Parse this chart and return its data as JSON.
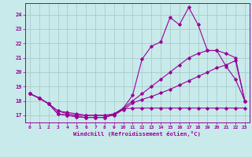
{
  "xlabel": "Windchill (Refroidissement éolien,°C)",
  "bg_color": "#c8eaea",
  "grid_color": "#aacccc",
  "line_color": "#990099",
  "x_ticks": [
    0,
    1,
    2,
    3,
    4,
    5,
    6,
    7,
    8,
    9,
    10,
    11,
    12,
    13,
    14,
    15,
    16,
    17,
    18,
    19,
    20,
    21,
    22,
    23
  ],
  "x_labels": [
    "0",
    "1",
    "2",
    "3",
    "4",
    "5",
    "6",
    "7",
    "8",
    "9",
    "10",
    "11",
    "12",
    "13",
    "14",
    "15",
    "16",
    "17",
    "18",
    "19",
    "20",
    "21",
    "22",
    "23"
  ],
  "y_ticks": [
    17,
    18,
    19,
    20,
    21,
    22,
    23,
    24
  ],
  "ylim": [
    16.5,
    24.8
  ],
  "xlim": [
    -0.5,
    23.5
  ],
  "line1_x": [
    0,
    1,
    2,
    3,
    4,
    5,
    6,
    7,
    8,
    9,
    10,
    11,
    12,
    13,
    14,
    15,
    16,
    17,
    18,
    19,
    20,
    21,
    22,
    23
  ],
  "line1_y": [
    18.5,
    18.2,
    17.8,
    17.1,
    17.0,
    16.9,
    16.85,
    16.85,
    16.85,
    17.05,
    17.45,
    17.5,
    17.5,
    17.5,
    17.5,
    17.5,
    17.5,
    17.5,
    17.5,
    17.5,
    17.5,
    17.5,
    17.5,
    17.5
  ],
  "line2_x": [
    0,
    1,
    2,
    3,
    4,
    5,
    6,
    7,
    8,
    9,
    10,
    11,
    12,
    13,
    14,
    15,
    16,
    17,
    18,
    19,
    20,
    21,
    22,
    23
  ],
  "line2_y": [
    18.5,
    18.2,
    17.8,
    17.1,
    17.0,
    16.9,
    16.85,
    16.85,
    16.85,
    17.05,
    17.5,
    18.4,
    20.9,
    21.8,
    22.1,
    23.8,
    23.3,
    24.5,
    23.3,
    21.5,
    21.5,
    20.4,
    19.5,
    18.0
  ],
  "line3_x": [
    0,
    1,
    2,
    3,
    4,
    5,
    6,
    7,
    8,
    9,
    10,
    11,
    12,
    13,
    14,
    15,
    16,
    17,
    18,
    19,
    20,
    21,
    22,
    23
  ],
  "line3_y": [
    18.5,
    18.2,
    17.8,
    17.3,
    17.1,
    17.0,
    17.0,
    17.0,
    17.0,
    17.1,
    17.5,
    18.0,
    18.5,
    19.0,
    19.5,
    20.0,
    20.5,
    21.0,
    21.3,
    21.5,
    21.5,
    21.3,
    21.0,
    18.0
  ],
  "line4_x": [
    0,
    1,
    2,
    3,
    4,
    5,
    6,
    7,
    8,
    9,
    10,
    11,
    12,
    13,
    14,
    15,
    16,
    17,
    18,
    19,
    20,
    21,
    22,
    23
  ],
  "line4_y": [
    18.5,
    18.2,
    17.8,
    17.3,
    17.2,
    17.1,
    17.0,
    17.0,
    17.0,
    17.0,
    17.4,
    17.85,
    18.1,
    18.3,
    18.55,
    18.8,
    19.1,
    19.4,
    19.7,
    20.0,
    20.3,
    20.5,
    20.8,
    18.0
  ]
}
